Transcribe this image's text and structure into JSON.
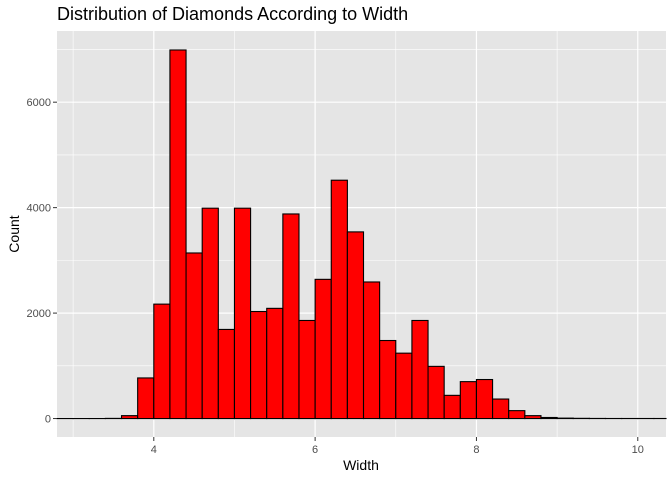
{
  "chart_data": {
    "type": "bar",
    "title": "Distribution of Diamonds According to Width",
    "xlabel": "Width",
    "ylabel": "Count",
    "xlim": [
      2.8,
      10.35
    ],
    "ylim": [
      -350,
      7350
    ],
    "x_ticks": [
      4,
      6,
      8,
      10
    ],
    "y_ticks": [
      0,
      2000,
      4000,
      6000
    ],
    "grid": true,
    "bar_fill": "#ff0000",
    "bar_stroke": "#000000",
    "panel_bg": "#e5e5e5",
    "grid_color": "#ffffff",
    "bins": [
      {
        "x0": 2.8,
        "x1": 3.0,
        "value": 0
      },
      {
        "x0": 3.0,
        "x1": 3.2,
        "value": 0
      },
      {
        "x0": 3.2,
        "x1": 3.4,
        "value": 0
      },
      {
        "x0": 3.4,
        "x1": 3.6,
        "value": 3
      },
      {
        "x0": 3.6,
        "x1": 3.8,
        "value": 55
      },
      {
        "x0": 3.8,
        "x1": 4.0,
        "value": 770
      },
      {
        "x0": 4.0,
        "x1": 4.2,
        "value": 2170
      },
      {
        "x0": 4.2,
        "x1": 4.4,
        "value": 6990
      },
      {
        "x0": 4.4,
        "x1": 4.6,
        "value": 3140
      },
      {
        "x0": 4.6,
        "x1": 4.8,
        "value": 3990
      },
      {
        "x0": 4.8,
        "x1": 5.0,
        "value": 1690
      },
      {
        "x0": 5.0,
        "x1": 5.2,
        "value": 3990
      },
      {
        "x0": 5.2,
        "x1": 5.4,
        "value": 2030
      },
      {
        "x0": 5.4,
        "x1": 5.6,
        "value": 2090
      },
      {
        "x0": 5.6,
        "x1": 5.8,
        "value": 3880
      },
      {
        "x0": 5.8,
        "x1": 6.0,
        "value": 1860
      },
      {
        "x0": 6.0,
        "x1": 6.2,
        "value": 2640
      },
      {
        "x0": 6.2,
        "x1": 6.4,
        "value": 4520
      },
      {
        "x0": 6.4,
        "x1": 6.6,
        "value": 3540
      },
      {
        "x0": 6.6,
        "x1": 6.8,
        "value": 2590
      },
      {
        "x0": 6.8,
        "x1": 7.0,
        "value": 1480
      },
      {
        "x0": 7.0,
        "x1": 7.2,
        "value": 1240
      },
      {
        "x0": 7.2,
        "x1": 7.4,
        "value": 1860
      },
      {
        "x0": 7.4,
        "x1": 7.6,
        "value": 990
      },
      {
        "x0": 7.6,
        "x1": 7.8,
        "value": 440
      },
      {
        "x0": 7.8,
        "x1": 8.0,
        "value": 700
      },
      {
        "x0": 8.0,
        "x1": 8.2,
        "value": 740
      },
      {
        "x0": 8.2,
        "x1": 8.4,
        "value": 370
      },
      {
        "x0": 8.4,
        "x1": 8.6,
        "value": 150
      },
      {
        "x0": 8.6,
        "x1": 8.8,
        "value": 55
      },
      {
        "x0": 8.8,
        "x1": 9.0,
        "value": 20
      },
      {
        "x0": 9.0,
        "x1": 9.2,
        "value": 8
      },
      {
        "x0": 9.2,
        "x1": 9.4,
        "value": 4
      },
      {
        "x0": 9.4,
        "x1": 9.6,
        "value": 2
      },
      {
        "x0": 9.6,
        "x1": 9.8,
        "value": 1
      },
      {
        "x0": 9.8,
        "x1": 10.0,
        "value": 1
      },
      {
        "x0": 10.0,
        "x1": 10.2,
        "value": 1
      },
      {
        "x0": 10.2,
        "x1": 10.4,
        "value": 1
      }
    ]
  }
}
